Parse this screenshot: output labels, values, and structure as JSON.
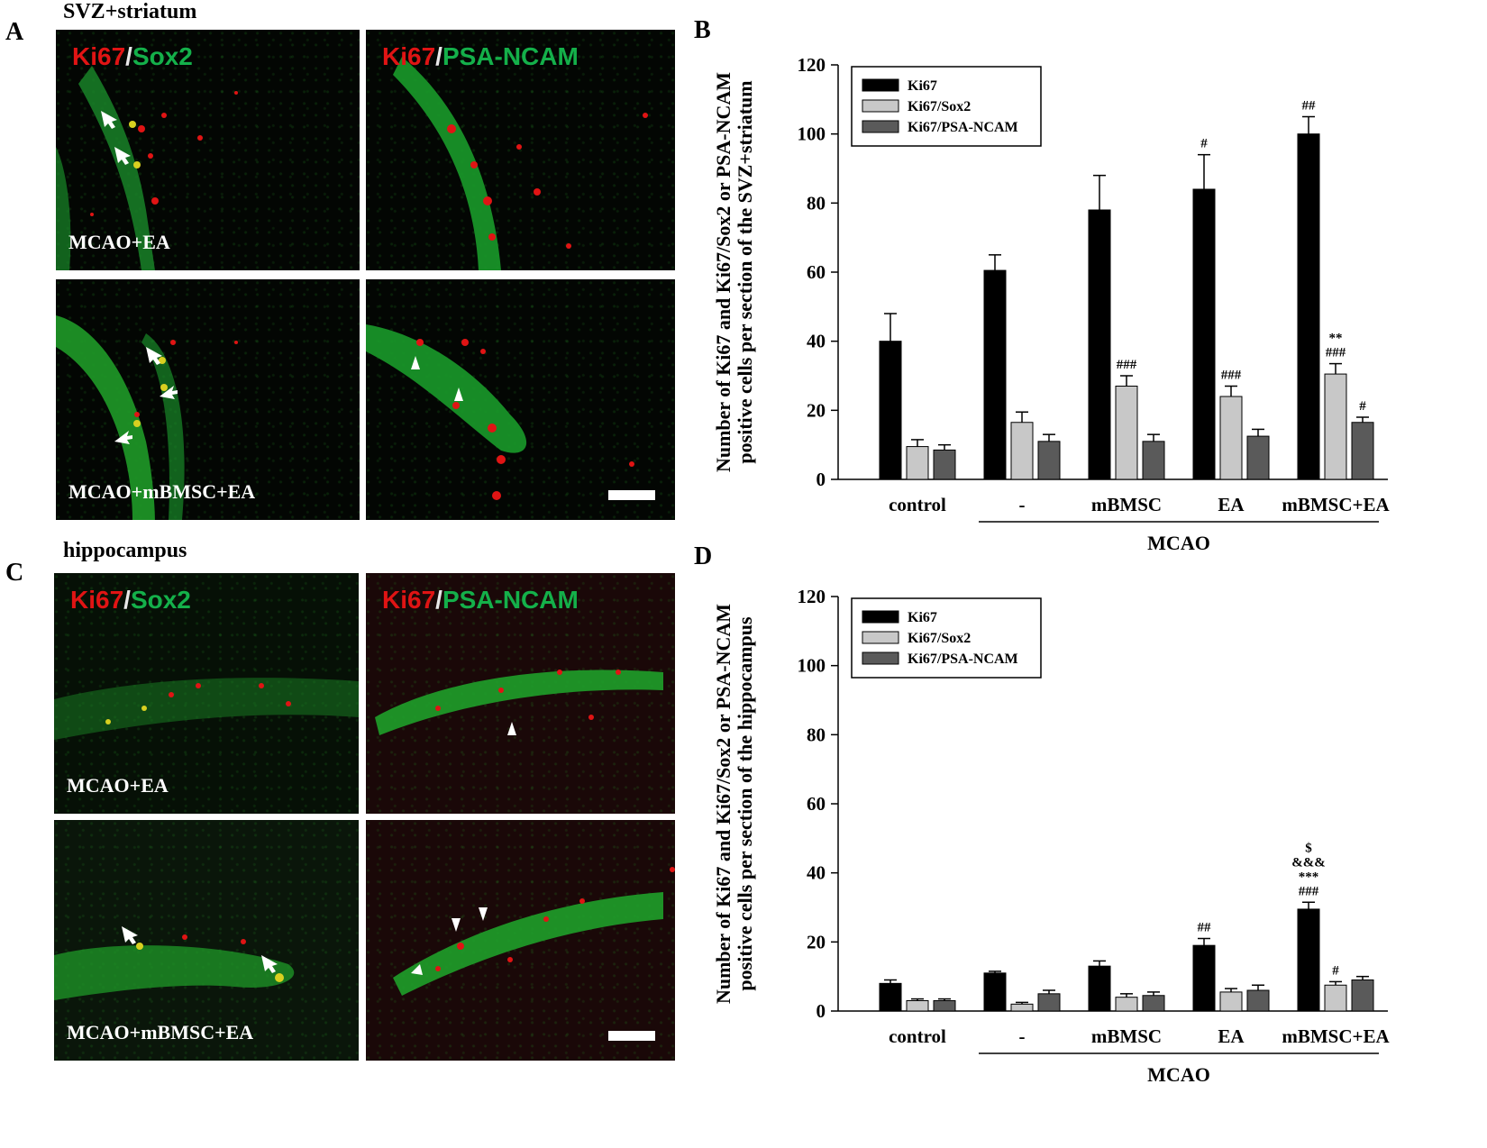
{
  "figure": {
    "panel_A": {
      "letter": "A",
      "region": "SVZ+striatum",
      "images": [
        {
          "marker1": "Ki67",
          "sep": "/",
          "marker2": "Sox2",
          "condition": "MCAO+EA"
        },
        {
          "marker1": "Ki67",
          "sep": "/",
          "marker2": "PSA-NCAM",
          "condition": ""
        },
        {
          "marker1": "",
          "sep": "",
          "marker2": "",
          "condition": "MCAO+mBMSC+EA"
        },
        {
          "marker1": "",
          "sep": "",
          "marker2": "",
          "condition": ""
        }
      ]
    },
    "panel_C": {
      "letter": "C",
      "region": "hippocampus",
      "images": [
        {
          "marker1": "Ki67",
          "sep": "/",
          "marker2": "Sox2",
          "condition": "MCAO+EA"
        },
        {
          "marker1": "Ki67",
          "sep": "/",
          "marker2": "PSA-NCAM",
          "condition": ""
        },
        {
          "marker1": "",
          "sep": "",
          "marker2": "",
          "condition": "MCAO+mBMSC+EA"
        },
        {
          "marker1": "",
          "sep": "",
          "marker2": "",
          "condition": ""
        }
      ]
    },
    "panel_B": {
      "letter": "B"
    },
    "panel_D": {
      "letter": "D"
    },
    "colors": {
      "ki67": "#000000",
      "ki67_sox2": "#c8c8c8",
      "ki67_psa": "#5a5a5a",
      "micro_red": "#e01414",
      "micro_green": "#14b04a",
      "micro_yellow": "#d8d020"
    }
  },
  "chart_data": [
    {
      "type": "bar",
      "panel": "B",
      "ylabel_lines": [
        "Number of Ki67 and Ki67/Sox2 or PSA-NCAM",
        "positive cells per section of the SVZ+striatum"
      ],
      "categories": [
        "control",
        "-",
        "mBMSC",
        "EA",
        "mBMSC+EA"
      ],
      "group_label": "MCAO",
      "group_span": [
        "-",
        "mBMSC+EA"
      ],
      "ylim": [
        0,
        120
      ],
      "yticks": [
        0,
        20,
        40,
        60,
        80,
        100,
        120
      ],
      "legend": "top-left",
      "series": [
        {
          "name": "Ki67",
          "values": [
            40,
            60.5,
            78,
            84,
            100
          ],
          "errors": [
            8,
            4.5,
            10,
            10,
            5
          ],
          "annotations": [
            "",
            "",
            "",
            "#",
            "##"
          ]
        },
        {
          "name": "Ki67/Sox2",
          "values": [
            9.5,
            16.5,
            27,
            24,
            30.5
          ],
          "errors": [
            2,
            3,
            3,
            3,
            3
          ],
          "annotations": [
            "",
            "",
            "###",
            "###",
            "**\n###"
          ]
        },
        {
          "name": "Ki67/PSA-NCAM",
          "values": [
            8.5,
            11,
            11,
            12.5,
            16.5
          ],
          "errors": [
            1.5,
            2,
            2,
            2,
            1.5
          ],
          "annotations": [
            "",
            "",
            "",
            "",
            "#"
          ]
        }
      ]
    },
    {
      "type": "bar",
      "panel": "D",
      "ylabel_lines": [
        "Number of Ki67 and Ki67/Sox2 or PSA-NCAM",
        "positive cells per section of the hippocampus"
      ],
      "categories": [
        "control",
        "-",
        "mBMSC",
        "EA",
        "mBMSC+EA"
      ],
      "group_label": "MCAO",
      "group_span": [
        "-",
        "mBMSC+EA"
      ],
      "ylim": [
        0,
        120
      ],
      "yticks": [
        0,
        20,
        40,
        60,
        80,
        100,
        120
      ],
      "legend": "top-left",
      "series": [
        {
          "name": "Ki67",
          "values": [
            8,
            11,
            13,
            19,
            29.5
          ],
          "errors": [
            1,
            0.5,
            1.5,
            2,
            2
          ],
          "annotations": [
            "",
            "",
            "",
            "##",
            "$\n&&&\n***\n###"
          ]
        },
        {
          "name": "Ki67/Sox2",
          "values": [
            3,
            2,
            4,
            5.5,
            7.5
          ],
          "errors": [
            0.5,
            0.5,
            1,
            1,
            1
          ],
          "annotations": [
            "",
            "",
            "",
            "",
            "#"
          ]
        },
        {
          "name": "Ki67/PSA-NCAM",
          "values": [
            3,
            5,
            4.5,
            6,
            9
          ],
          "errors": [
            0.5,
            1,
            1,
            1.5,
            1
          ],
          "annotations": [
            "",
            "",
            "",
            "",
            ""
          ]
        }
      ]
    }
  ]
}
